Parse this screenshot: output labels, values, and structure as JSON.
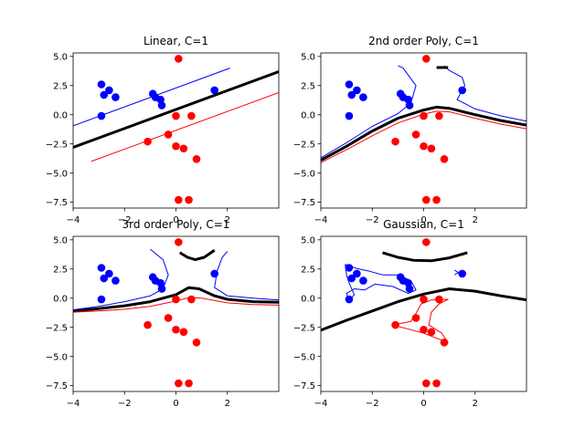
{
  "chart_data": [
    {
      "type": "scatter",
      "title": "Linear, C=1",
      "xlim": [
        -4,
        4
      ],
      "ylim": [
        -8,
        5.3
      ],
      "xticks": [
        -4,
        -2,
        0,
        2
      ],
      "xtick_labels": [
        "−4",
        "−2",
        "0",
        "2"
      ],
      "yticks": [
        5,
        2.5,
        0,
        -2.5,
        -5,
        -7.5
      ],
      "ytick_labels": [
        "5.0",
        "2.5",
        "0.0",
        "−2.5",
        "−5.0",
        "−7.5"
      ],
      "blue_points": [
        [
          -2.9,
          2.6
        ],
        [
          -2.8,
          1.7
        ],
        [
          -2.6,
          2.1
        ],
        [
          -2.35,
          1.5
        ],
        [
          -2.9,
          -0.1
        ],
        [
          -0.9,
          1.8
        ],
        [
          -0.8,
          1.5
        ],
        [
          -0.6,
          1.3
        ],
        [
          -0.55,
          0.8
        ],
        [
          1.5,
          2.1
        ]
      ],
      "red_points": [
        [
          0.1,
          4.8
        ],
        [
          0.0,
          -0.1
        ],
        [
          0.6,
          -0.1
        ],
        [
          -0.3,
          -1.7
        ],
        [
          -1.1,
          -2.3
        ],
        [
          0.0,
          -2.7
        ],
        [
          0.3,
          -2.9
        ],
        [
          0.8,
          -3.8
        ],
        [
          0.1,
          -7.3
        ],
        [
          0.5,
          -7.3
        ]
      ],
      "curves": [
        {
          "color": "#000000",
          "width": 3,
          "points": [
            [
              -4,
              -2.8
            ],
            [
              4,
              3.7
            ]
          ]
        },
        {
          "color": "#0000ff",
          "width": 1,
          "points": [
            [
              -4,
              -0.95
            ],
            [
              2.1,
              4.0
            ]
          ]
        },
        {
          "color": "#ff0000",
          "width": 1,
          "points": [
            [
              -3.3,
              -4.0
            ],
            [
              4,
              1.9
            ]
          ]
        }
      ]
    },
    {
      "type": "scatter",
      "title": "2nd order Poly, C=1",
      "xlim": [
        -4,
        4
      ],
      "ylim": [
        -8,
        5.3
      ],
      "xticks": [
        -4,
        -2,
        0,
        2
      ],
      "xtick_labels": [
        "−4",
        "−2",
        "0",
        "2"
      ],
      "yticks": [
        5,
        2.5,
        0,
        -2.5,
        -5,
        -7.5
      ],
      "ytick_labels": [
        "5.0",
        "2.5",
        "0.0",
        "−2.5",
        "−5.0",
        "−7.5"
      ],
      "blue_points": [
        [
          -2.9,
          2.6
        ],
        [
          -2.8,
          1.7
        ],
        [
          -2.6,
          2.1
        ],
        [
          -2.35,
          1.5
        ],
        [
          -2.9,
          -0.1
        ],
        [
          -0.9,
          1.8
        ],
        [
          -0.8,
          1.5
        ],
        [
          -0.6,
          1.3
        ],
        [
          -0.55,
          0.8
        ],
        [
          1.5,
          2.1
        ]
      ],
      "red_points": [
        [
          0.1,
          4.8
        ],
        [
          0.0,
          -0.1
        ],
        [
          0.6,
          -0.1
        ],
        [
          -0.3,
          -1.7
        ],
        [
          -1.1,
          -2.3
        ],
        [
          0.0,
          -2.7
        ],
        [
          0.3,
          -2.9
        ],
        [
          0.8,
          -3.8
        ],
        [
          0.1,
          -7.3
        ],
        [
          0.5,
          -7.3
        ]
      ],
      "curves": [
        {
          "color": "#000000",
          "width": 3,
          "points": [
            [
              -4,
              -3.9
            ],
            [
              -3,
              -2.7
            ],
            [
              -2,
              -1.4
            ],
            [
              -1,
              -0.3
            ],
            [
              0,
              0.4
            ],
            [
              0.5,
              0.65
            ],
            [
              1,
              0.55
            ],
            [
              2,
              0
            ],
            [
              3,
              -0.5
            ],
            [
              4,
              -0.9
            ]
          ]
        },
        {
          "color": "#0000ff",
          "width": 1,
          "points": [
            [
              -4,
              -3.7
            ],
            [
              -3,
              -2.4
            ],
            [
              -2,
              -1.0
            ],
            [
              -1,
              0.1
            ],
            [
              -0.5,
              1.0
            ],
            [
              -0.3,
              2.5
            ],
            [
              -0.8,
              4.0
            ],
            [
              -1.0,
              4.2
            ]
          ]
        },
        {
          "color": "#0000ff",
          "width": 1,
          "points": [
            [
              4,
              -0.55
            ],
            [
              3,
              -0.1
            ],
            [
              2,
              0.5
            ],
            [
              1.3,
              1.3
            ],
            [
              1.6,
              2.5
            ],
            [
              1.5,
              3.2
            ],
            [
              1.0,
              3.8
            ],
            [
              0.8,
              4.2
            ]
          ]
        },
        {
          "color": "#ff0000",
          "width": 1,
          "points": [
            [
              -4,
              -4.1
            ],
            [
              -3,
              -3.0
            ],
            [
              -2,
              -1.8
            ],
            [
              -1,
              -0.7
            ],
            [
              0,
              0.05
            ],
            [
              0.5,
              0.3
            ],
            [
              1,
              0.25
            ],
            [
              2,
              -0.3
            ],
            [
              3,
              -0.8
            ],
            [
              4,
              -1.2
            ]
          ]
        },
        {
          "color": "#000000",
          "width": 3,
          "points": [
            [
              0.5,
              4.05
            ],
            [
              0.95,
              4.05
            ]
          ]
        }
      ]
    },
    {
      "type": "scatter",
      "title": "3rd order Poly, C=1",
      "xlim": [
        -4,
        4
      ],
      "ylim": [
        -8,
        5.3
      ],
      "xticks": [
        -4,
        -2,
        0,
        2
      ],
      "xtick_labels": [
        "−4",
        "−2",
        "0",
        "2"
      ],
      "yticks": [
        5,
        2.5,
        0,
        -2.5,
        -5,
        -7.5
      ],
      "ytick_labels": [
        "5.0",
        "2.5",
        "0.0",
        "−2.5",
        "−5.0",
        "−7.5"
      ],
      "blue_points": [
        [
          -2.9,
          2.6
        ],
        [
          -2.8,
          1.7
        ],
        [
          -2.6,
          2.1
        ],
        [
          -2.35,
          1.5
        ],
        [
          -2.9,
          -0.1
        ],
        [
          -0.9,
          1.8
        ],
        [
          -0.8,
          1.5
        ],
        [
          -0.6,
          1.3
        ],
        [
          -0.55,
          0.8
        ],
        [
          1.5,
          2.1
        ]
      ],
      "red_points": [
        [
          0.1,
          4.8
        ],
        [
          0.0,
          -0.1
        ],
        [
          0.6,
          -0.1
        ],
        [
          -0.3,
          -1.7
        ],
        [
          -1.1,
          -2.3
        ],
        [
          0.0,
          -2.7
        ],
        [
          0.3,
          -2.9
        ],
        [
          0.8,
          -3.8
        ],
        [
          0.1,
          -7.3
        ],
        [
          0.5,
          -7.3
        ]
      ],
      "curves": [
        {
          "color": "#000000",
          "width": 3,
          "points": [
            [
              -4,
              -1.1
            ],
            [
              -3,
              -0.9
            ],
            [
              -2,
              -0.65
            ],
            [
              -1,
              -0.3
            ],
            [
              0,
              0.3
            ],
            [
              0.5,
              0.9
            ],
            [
              0.9,
              0.8
            ],
            [
              1.5,
              0.2
            ],
            [
              2,
              -0.1
            ],
            [
              3,
              -0.3
            ],
            [
              4,
              -0.35
            ]
          ]
        },
        {
          "color": "#0000ff",
          "width": 1,
          "points": [
            [
              -4,
              -1.0
            ],
            [
              -3,
              -0.7
            ],
            [
              -2,
              -0.3
            ],
            [
              -1,
              0.2
            ],
            [
              -0.5,
              0.8
            ],
            [
              -0.3,
              2.0
            ],
            [
              -0.5,
              3.3
            ],
            [
              -1.0,
              4.2
            ]
          ]
        },
        {
          "color": "#0000ff",
          "width": 1,
          "points": [
            [
              4,
              -0.15
            ],
            [
              3,
              0
            ],
            [
              2,
              0.2
            ],
            [
              1.5,
              0.9
            ],
            [
              1.6,
              2.3
            ],
            [
              1.8,
              3.5
            ],
            [
              2.0,
              4.0
            ]
          ]
        },
        {
          "color": "#ff0000",
          "width": 1,
          "points": [
            [
              -4,
              -1.2
            ],
            [
              -3,
              -1.1
            ],
            [
              -2,
              -0.95
            ],
            [
              -1,
              -0.7
            ],
            [
              0,
              -0.25
            ],
            [
              0.5,
              0.05
            ],
            [
              1,
              0
            ],
            [
              2,
              -0.4
            ],
            [
              3,
              -0.55
            ],
            [
              4,
              -0.6
            ]
          ]
        },
        {
          "color": "#000000",
          "width": 3,
          "points": [
            [
              0.15,
              3.9
            ],
            [
              0.45,
              3.5
            ],
            [
              0.75,
              3.3
            ],
            [
              1.1,
              3.5
            ],
            [
              1.5,
              4.1
            ]
          ]
        }
      ]
    },
    {
      "type": "scatter",
      "title": "Gaussian, C=1",
      "xlim": [
        -4,
        4
      ],
      "ylim": [
        -8,
        5.3
      ],
      "xticks": [
        -4,
        -2,
        0,
        2
      ],
      "xtick_labels": [
        "−4",
        "−2",
        "0",
        "2"
      ],
      "yticks": [
        5,
        2.5,
        0,
        -2.5,
        -5,
        -7.5
      ],
      "ytick_labels": [
        "5.0",
        "2.5",
        "0.0",
        "−2.5",
        "−5.0",
        "−7.5"
      ],
      "blue_points": [
        [
          -2.9,
          2.6
        ],
        [
          -2.8,
          1.7
        ],
        [
          -2.6,
          2.1
        ],
        [
          -2.35,
          1.5
        ],
        [
          -2.9,
          -0.1
        ],
        [
          -0.9,
          1.8
        ],
        [
          -0.8,
          1.5
        ],
        [
          -0.6,
          1.3
        ],
        [
          -0.55,
          0.8
        ],
        [
          1.5,
          2.1
        ]
      ],
      "red_points": [
        [
          0.1,
          4.8
        ],
        [
          0.0,
          -0.1
        ],
        [
          0.6,
          -0.1
        ],
        [
          -0.3,
          -1.7
        ],
        [
          -1.1,
          -2.3
        ],
        [
          0.0,
          -2.7
        ],
        [
          0.3,
          -2.9
        ],
        [
          0.8,
          -3.8
        ],
        [
          0.1,
          -7.3
        ],
        [
          0.5,
          -7.3
        ]
      ],
      "curves": [
        {
          "color": "#000000",
          "width": 3,
          "points": [
            [
              -4,
              -2.75
            ],
            [
              -3,
              -1.9
            ],
            [
              -2,
              -1.1
            ],
            [
              -1,
              -0.3
            ],
            [
              0,
              0.35
            ],
            [
              1,
              0.8
            ],
            [
              2,
              0.6
            ],
            [
              3,
              0.2
            ],
            [
              4,
              -0.15
            ]
          ]
        },
        {
          "color": "#0000ff",
          "width": 1,
          "points": [
            [
              -3.05,
              2.9
            ],
            [
              -2.6,
              2.55
            ],
            [
              -2.1,
              2.3
            ],
            [
              -1.6,
              2.0
            ],
            [
              -1.0,
              2.0
            ],
            [
              -0.5,
              1.5
            ],
            [
              -0.3,
              0.7
            ],
            [
              -0.6,
              0.4
            ],
            [
              -1.2,
              1.0
            ],
            [
              -1.9,
              1.2
            ],
            [
              -2.3,
              0.7
            ],
            [
              -2.7,
              0.8
            ],
            [
              -3.0,
              0.4
            ],
            [
              -2.9,
              -0.2
            ],
            [
              -2.7,
              0.3
            ],
            [
              -2.9,
              1.3
            ],
            [
              -3.0,
              2.0
            ],
            [
              -3.05,
              2.9
            ]
          ]
        },
        {
          "color": "#0000ff",
          "width": 1,
          "points": [
            [
              1.2,
              2.4
            ],
            [
              1.35,
              2.2
            ],
            [
              1.2,
              2.0
            ]
          ]
        },
        {
          "color": "#ff0000",
          "width": 1,
          "points": [
            [
              -1.2,
              -2.3
            ],
            [
              -0.5,
              -2.0
            ],
            [
              -0.3,
              -1.3
            ],
            [
              -0.1,
              -0.5
            ],
            [
              0.3,
              -0.15
            ],
            [
              0.95,
              -0.1
            ],
            [
              0.6,
              -0.5
            ],
            [
              0.3,
              -1.2
            ],
            [
              0.2,
              -2.3
            ],
            [
              0.7,
              -3.0
            ],
            [
              0.95,
              -3.8
            ],
            [
              0.7,
              -3.6
            ],
            [
              0.0,
              -3.0
            ],
            [
              -0.5,
              -2.7
            ],
            [
              -1.2,
              -2.3
            ]
          ]
        },
        {
          "color": "#000000",
          "width": 3,
          "points": [
            [
              -1.6,
              3.9
            ],
            [
              -1.0,
              3.5
            ],
            [
              -0.4,
              3.25
            ],
            [
              0.3,
              3.2
            ],
            [
              1.0,
              3.45
            ],
            [
              1.7,
              3.9
            ]
          ]
        }
      ]
    }
  ]
}
